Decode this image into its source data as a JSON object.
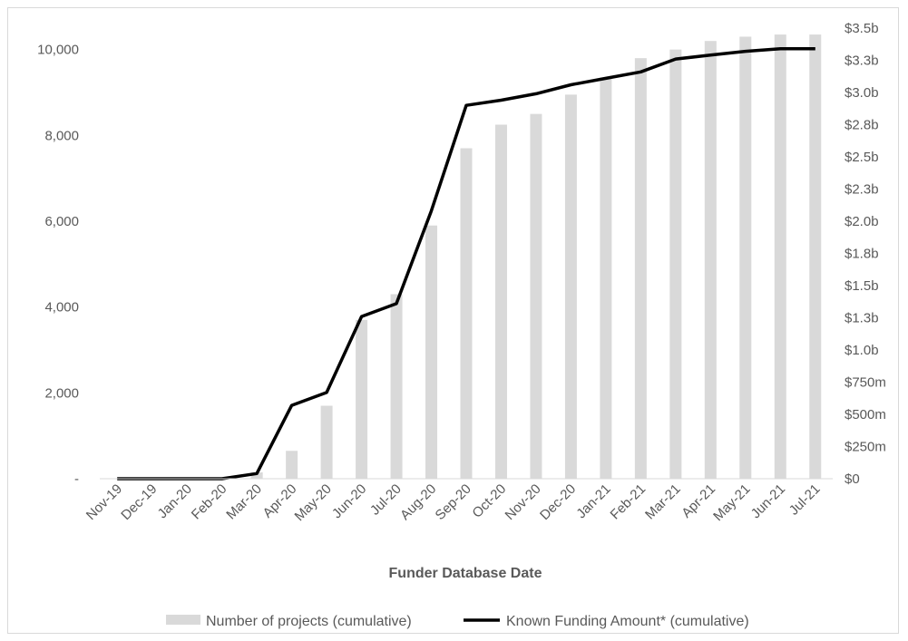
{
  "chart_data": {
    "type": "bar",
    "title": "",
    "xlabel": "Funder Database Date",
    "ylabel": "",
    "y2label": "",
    "categories": [
      "Nov-19",
      "Dec-19",
      "Jan-20",
      "Feb-20",
      "Mar-20",
      "Apr-20",
      "May-20",
      "Jun-20",
      "Jul-20",
      "Aug-20",
      "Sep-20",
      "Oct-20",
      "Nov-20",
      "Dec-20",
      "Jan-21",
      "Feb-21",
      "Mar-21",
      "Apr-21",
      "May-21",
      "Jun-21",
      "Jul-21"
    ],
    "ylim": [
      0,
      10500
    ],
    "y2lim": [
      0,
      3500
    ],
    "yticks": [
      {
        "value": 0,
        "label": "-"
      },
      {
        "value": 2000,
        "label": "2,000"
      },
      {
        "value": 4000,
        "label": "4,000"
      },
      {
        "value": 6000,
        "label": "6,000"
      },
      {
        "value": 8000,
        "label": "8,000"
      },
      {
        "value": 10000,
        "label": "10,000"
      }
    ],
    "y2ticks": [
      {
        "value": 0,
        "label": "$0"
      },
      {
        "value": 250,
        "label": "$250m"
      },
      {
        "value": 500,
        "label": "$500m"
      },
      {
        "value": 750,
        "label": "$750m"
      },
      {
        "value": 1000,
        "label": "$1.0b"
      },
      {
        "value": 1250,
        "label": "$1.3b"
      },
      {
        "value": 1500,
        "label": "$1.5b"
      },
      {
        "value": 1750,
        "label": "$1.8b"
      },
      {
        "value": 2000,
        "label": "$2.0b"
      },
      {
        "value": 2250,
        "label": "$2.3b"
      },
      {
        "value": 2500,
        "label": "$2.5b"
      },
      {
        "value": 2750,
        "label": "$2.8b"
      },
      {
        "value": 3000,
        "label": "$3.0b"
      },
      {
        "value": 3250,
        "label": "$3.3b"
      },
      {
        "value": 3500,
        "label": "$3.5b"
      }
    ],
    "grid": false,
    "legend_position": "bottom",
    "series": [
      {
        "name": "Number of projects (cumulative)",
        "type": "bar",
        "axis": "left",
        "color": "#d9d9d9",
        "values": [
          0,
          0,
          0,
          0,
          150,
          650,
          1700,
          3700,
          4300,
          5900,
          7700,
          8250,
          8500,
          8950,
          9350,
          9800,
          10000,
          10200,
          10300,
          10350,
          10350
        ]
      },
      {
        "name": "Known Funding Amount* (cumulative)",
        "type": "line",
        "axis": "right",
        "unit": "USD millions",
        "color": "#000000",
        "values": [
          0,
          0,
          0,
          0,
          40,
          570,
          670,
          1260,
          1360,
          2080,
          2900,
          2940,
          2990,
          3060,
          3110,
          3160,
          3260,
          3290,
          3320,
          3340,
          3340
        ]
      }
    ]
  }
}
